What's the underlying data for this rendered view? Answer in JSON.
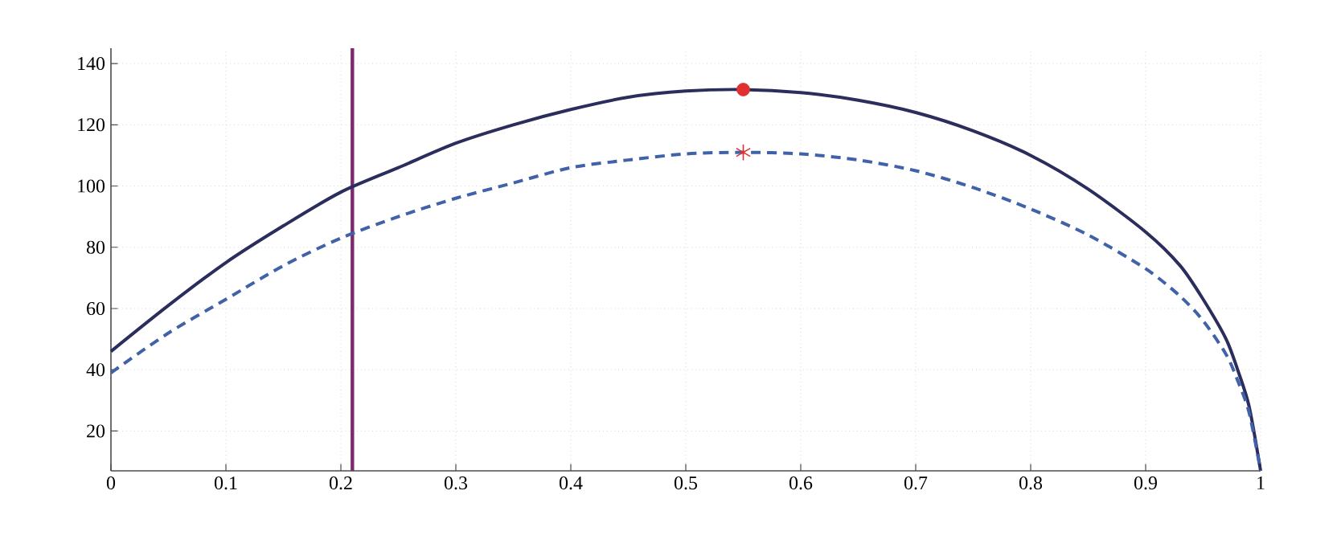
{
  "chart_data": {
    "type": "line",
    "series": [
      {
        "color": "#2b2d5c",
        "line_style": "solid",
        "marker": "none",
        "x": [
          0,
          0.05,
          0.1,
          0.15,
          0.2,
          0.25,
          0.3,
          0.35,
          0.4,
          0.45,
          0.5,
          0.55,
          0.6,
          0.65,
          0.7,
          0.75,
          0.8,
          0.85,
          0.9,
          0.93,
          0.95,
          0.97,
          0.98,
          0.99,
          1
        ],
        "values": [
          46,
          61,
          75,
          87,
          98,
          106,
          114,
          120,
          125,
          129,
          131,
          131.5,
          130.5,
          128,
          124,
          118,
          110,
          99,
          85,
          74,
          63,
          50,
          40,
          28,
          7
        ]
      },
      {
        "color": "#4062a8",
        "line_style": "dashed",
        "marker": "none",
        "x": [
          0,
          0.05,
          0.1,
          0.15,
          0.2,
          0.25,
          0.3,
          0.35,
          0.4,
          0.45,
          0.5,
          0.55,
          0.6,
          0.65,
          0.7,
          0.75,
          0.8,
          0.85,
          0.9,
          0.93,
          0.95,
          0.97,
          0.98,
          0.99,
          1
        ],
        "values": [
          39,
          52,
          63,
          74,
          83,
          90,
          96,
          101,
          106,
          108.5,
          110.5,
          111,
          110.5,
          108.5,
          105,
          99.5,
          92.5,
          84,
          73,
          64,
          56,
          45,
          36.5,
          26,
          7
        ]
      },
      {
        "type": "scatter",
        "color": "#e03030",
        "marker": "circle",
        "x": [
          0.55
        ],
        "values": [
          131.5
        ]
      },
      {
        "type": "scatter",
        "color": "#e03030",
        "marker": "cross",
        "x": [
          0.55
        ],
        "values": [
          111
        ]
      }
    ],
    "ref_lines": [
      {
        "axis": "x",
        "value": 0.21,
        "color": "#7b2a6e"
      }
    ],
    "xlim": [
      0,
      1
    ],
    "ylim": [
      7,
      145
    ],
    "xticks": [
      0,
      0.1,
      0.2,
      0.3,
      0.4,
      0.5,
      0.6,
      0.7,
      0.8,
      0.9,
      1
    ],
    "yticks": [
      20,
      40,
      60,
      80,
      100,
      120,
      140
    ],
    "grid": true
  }
}
